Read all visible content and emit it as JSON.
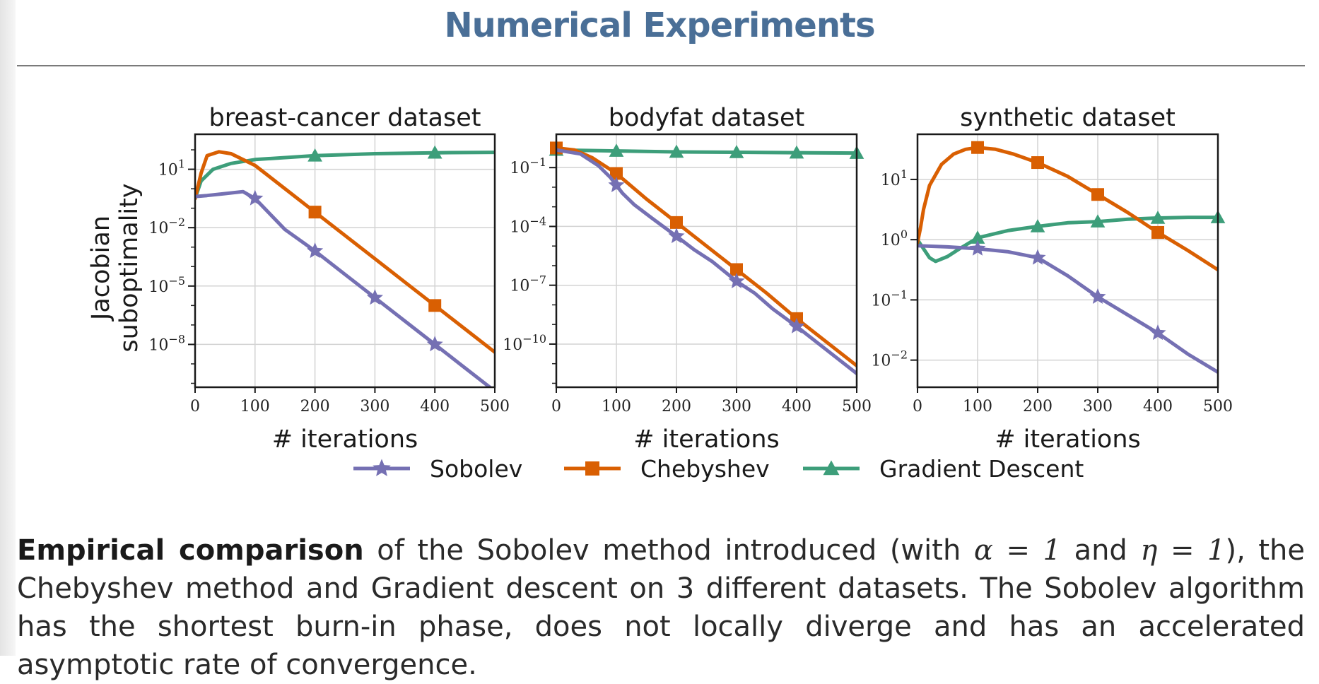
{
  "page": {
    "title": "Numerical Experiments"
  },
  "colors": {
    "sobolev": "#7570b3",
    "chebyshev": "#d95f02",
    "gd": "#3d9e7a",
    "title": "#4a6f97"
  },
  "legend": [
    {
      "name": "Sobolev",
      "color": "#7570b3",
      "marker": "star"
    },
    {
      "name": "Chebyshev",
      "color": "#d95f02",
      "marker": "square"
    },
    {
      "name": "Gradient Descent",
      "color": "#3d9e7a",
      "marker": "triangle"
    }
  ],
  "chart_data": [
    {
      "type": "line",
      "title": "breast-cancer dataset",
      "xlabel": "# iterations",
      "ylabel": "Jacobian suboptimality",
      "yscale": "log",
      "xlim": [
        0,
        500
      ],
      "ylim_exp": [
        -10.2,
        2.8
      ],
      "xticks": [
        "0",
        "100",
        "200",
        "300",
        "400",
        "500"
      ],
      "yticks": [
        {
          "base": "10",
          "exp": "1",
          "value": 1
        },
        {
          "base": "10",
          "exp": "−2",
          "value": -2
        },
        {
          "base": "10",
          "exp": "−5",
          "value": -5
        },
        {
          "base": "10",
          "exp": "−8",
          "value": -8
        }
      ],
      "grid": true,
      "series": [
        {
          "name": "Sobolev",
          "x": [
            0,
            20,
            50,
            80,
            100,
            150,
            200,
            250,
            300,
            350,
            400,
            450,
            500
          ],
          "y_exp": [
            -0.4,
            -0.35,
            -0.25,
            -0.15,
            -0.5,
            -2.1,
            -3.2,
            -4.4,
            -5.6,
            -6.8,
            -8.0,
            -9.2,
            -10.4
          ]
        },
        {
          "name": "Chebyshev",
          "x": [
            0,
            10,
            20,
            40,
            60,
            100,
            150,
            200,
            250,
            300,
            350,
            400,
            450,
            500
          ],
          "y_exp": [
            -0.5,
            0.8,
            1.7,
            1.9,
            1.8,
            1.2,
            0.0,
            -1.2,
            -2.4,
            -3.6,
            -4.8,
            -6.0,
            -7.2,
            -8.4
          ]
        },
        {
          "name": "Gradient Descent",
          "x": [
            0,
            10,
            30,
            60,
            100,
            200,
            300,
            400,
            500
          ],
          "y_exp": [
            -0.5,
            0.4,
            1.0,
            1.3,
            1.5,
            1.7,
            1.8,
            1.85,
            1.87
          ]
        }
      ]
    },
    {
      "type": "line",
      "title": "bodyfat dataset",
      "xlabel": "# iterations",
      "yscale": "log",
      "xlim": [
        0,
        500
      ],
      "ylim_exp": [
        -12.2,
        0.7
      ],
      "xticks": [
        "0",
        "100",
        "200",
        "300",
        "400",
        "500"
      ],
      "yticks": [
        {
          "base": "10",
          "exp": "−1",
          "value": -1
        },
        {
          "base": "10",
          "exp": "−4",
          "value": -4
        },
        {
          "base": "10",
          "exp": "−7",
          "value": -7
        },
        {
          "base": "10",
          "exp": "−10",
          "value": -10
        }
      ],
      "grid": true,
      "series": [
        {
          "name": "Sobolev",
          "x": [
            0,
            40,
            70,
            90,
            110,
            130,
            160,
            200,
            230,
            260,
            300,
            330,
            360,
            400,
            450,
            500
          ],
          "y_exp": [
            -0.1,
            -0.3,
            -0.9,
            -1.5,
            -2.3,
            -2.9,
            -3.6,
            -4.5,
            -5.2,
            -5.8,
            -6.8,
            -7.4,
            -8.2,
            -9.1,
            -10.3,
            -11.5
          ]
        },
        {
          "name": "Chebyshev",
          "x": [
            0,
            30,
            60,
            100,
            150,
            200,
            250,
            300,
            350,
            400,
            450,
            500
          ],
          "y_exp": [
            0.0,
            -0.1,
            -0.5,
            -1.3,
            -2.6,
            -3.8,
            -5.0,
            -6.2,
            -7.4,
            -8.7,
            -9.9,
            -11.1
          ]
        },
        {
          "name": "Gradient Descent",
          "x": [
            0,
            100,
            200,
            300,
            400,
            500
          ],
          "y_exp": [
            -0.1,
            -0.15,
            -0.2,
            -0.22,
            -0.24,
            -0.26
          ]
        }
      ]
    },
    {
      "type": "line",
      "title": "synthetic dataset",
      "xlabel": "# iterations",
      "yscale": "log",
      "xlim": [
        0,
        500
      ],
      "ylim_exp": [
        -2.45,
        1.75
      ],
      "xticks": [
        "0",
        "100",
        "200",
        "300",
        "400",
        "500"
      ],
      "yticks": [
        {
          "base": "10",
          "exp": "1",
          "value": 1
        },
        {
          "base": "10",
          "exp": "0",
          "value": 0
        },
        {
          "base": "10",
          "exp": "−1",
          "value": -1
        },
        {
          "base": "10",
          "exp": "−2",
          "value": -2
        }
      ],
      "grid": true,
      "series": [
        {
          "name": "Sobolev",
          "x": [
            0,
            50,
            100,
            150,
            200,
            250,
            300,
            350,
            400,
            450,
            500
          ],
          "y_exp": [
            -0.1,
            -0.12,
            -0.15,
            -0.2,
            -0.3,
            -0.6,
            -0.95,
            -1.25,
            -1.55,
            -1.9,
            -2.2
          ]
        },
        {
          "name": "Chebyshev",
          "x": [
            0,
            5,
            10,
            20,
            40,
            60,
            80,
            100,
            130,
            160,
            200,
            250,
            300,
            350,
            400,
            450,
            500
          ],
          "y_exp": [
            -0.05,
            0.2,
            0.5,
            0.9,
            1.25,
            1.42,
            1.5,
            1.53,
            1.5,
            1.42,
            1.28,
            1.05,
            0.75,
            0.45,
            0.12,
            -0.18,
            -0.5
          ]
        },
        {
          "name": "Gradient Descent",
          "x": [
            0,
            10,
            20,
            30,
            50,
            70,
            100,
            150,
            200,
            250,
            300,
            350,
            400,
            450,
            500
          ],
          "y_exp": [
            0.0,
            -0.15,
            -0.3,
            -0.36,
            -0.28,
            -0.15,
            0.03,
            0.15,
            0.22,
            0.28,
            0.3,
            0.34,
            0.36,
            0.37,
            0.37
          ]
        }
      ]
    }
  ],
  "caption": {
    "bold": "Empirical comparison",
    "part1": " of the Sobolev method introduced (with ",
    "alpha_eq": "α = 1",
    "part2": " and ",
    "eta_eq": "η = 1",
    "part3": "), the Chebyshev method and Gradient descent on 3 different datasets. The Sobolev algorithm has the shortest burn-in phase, does not locally diverge and has an accelerated asymptotic rate of convergence."
  }
}
